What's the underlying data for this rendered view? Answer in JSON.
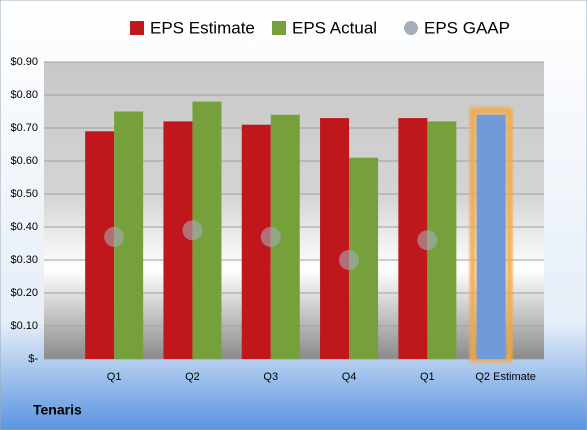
{
  "chart_data": {
    "type": "bar",
    "categories": [
      "Q1",
      "Q2",
      "Q3",
      "Q4",
      "Q1",
      "Q2 Estimate"
    ],
    "series": [
      {
        "name": "EPS Estimate",
        "color": "#c0171c",
        "colors": [
          "#c0171c",
          "#c0171c",
          "#c0171c",
          "#c0171c",
          "#c0171c",
          "#6f9bd8"
        ],
        "values": [
          0.69,
          0.72,
          0.71,
          0.73,
          0.73,
          0.74
        ]
      },
      {
        "name": "EPS Actual",
        "color": "#76a03c",
        "values": [
          0.75,
          0.78,
          0.74,
          0.61,
          0.72,
          null
        ]
      },
      {
        "name": "EPS GAAP",
        "color": "#a6acb8",
        "type": "scatter",
        "values": [
          0.37,
          0.39,
          0.37,
          0.3,
          0.36,
          null
        ]
      }
    ],
    "ylim": [
      0,
      0.9
    ],
    "yticks": [
      {
        "value": 0,
        "label": "$-"
      },
      {
        "value": 0.1,
        "label": "$0.10"
      },
      {
        "value": 0.2,
        "label": "$0.20"
      },
      {
        "value": 0.3,
        "label": "$0.30"
      },
      {
        "value": 0.4,
        "label": "$0.40"
      },
      {
        "value": 0.5,
        "label": "$0.50"
      },
      {
        "value": 0.6,
        "label": "$0.60"
      },
      {
        "value": 0.7,
        "label": "$0.70"
      },
      {
        "value": 0.8,
        "label": "$0.80"
      },
      {
        "value": 0.9,
        "label": "$0.90"
      }
    ],
    "grid": true,
    "caption": "Tenaris"
  }
}
